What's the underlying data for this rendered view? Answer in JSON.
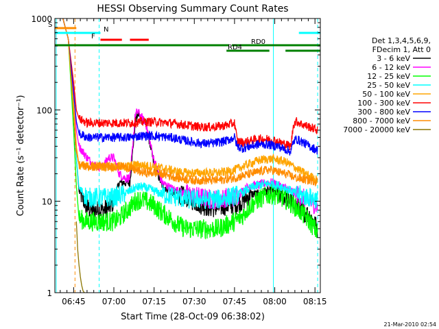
{
  "chart_data": {
    "type": "line",
    "title": "HESSI Observing Summary Count Rates",
    "xlabel": "Start Time (28-Oct-09 06:38:02)",
    "ylabel": "Count Rate (s⁻¹ detector⁻¹)",
    "ylog": true,
    "ylim": [
      1,
      1000
    ],
    "xlim_minutes": [
      38,
      137
    ],
    "xticks": [
      {
        "m": 45,
        "label": "06:45"
      },
      {
        "m": 60,
        "label": "07:00"
      },
      {
        "m": 75,
        "label": "07:15"
      },
      {
        "m": 90,
        "label": "07:30"
      },
      {
        "m": 105,
        "label": "07:45"
      },
      {
        "m": 120,
        "label": "08:00"
      },
      {
        "m": 135,
        "label": "08:15"
      }
    ],
    "yticks": [
      {
        "v": 1,
        "label": "1"
      },
      {
        "v": 10,
        "label": "10"
      },
      {
        "v": 100,
        "label": "100"
      },
      {
        "v": 1000,
        "label": "1000"
      }
    ],
    "legend_title": [
      "Det 1,3,4,5,6,9,",
      "FDecim 1, Att 0"
    ],
    "legend_position": "right",
    "series": [
      {
        "name": "3 - 6 keV",
        "color": "#000000",
        "x": [
          41,
          43,
          45,
          46,
          47,
          50,
          52,
          54,
          56,
          58,
          60,
          62,
          64,
          66,
          67,
          68,
          69,
          72,
          75,
          78,
          81,
          84,
          87,
          90,
          93,
          96,
          99,
          102,
          105,
          108,
          111,
          114,
          117,
          119,
          121,
          124,
          126,
          128,
          130,
          133,
          136
        ],
        "y": [
          1000,
          600,
          90,
          30,
          13,
          8.5,
          8,
          8,
          8,
          8.5,
          10,
          16,
          16,
          16,
          35,
          75,
          90,
          70,
          25,
          15,
          13,
          12,
          11,
          10,
          9,
          8.5,
          8.5,
          9,
          9,
          10,
          12,
          12,
          13,
          13,
          12,
          11,
          10,
          9,
          8,
          7,
          5
        ]
      },
      {
        "name": "6 - 12 keV",
        "color": "#ff00ff",
        "x": [
          41,
          43,
          45,
          46,
          47,
          50,
          52,
          54,
          56,
          58,
          60,
          62,
          64,
          66,
          67,
          68,
          69,
          72,
          75,
          78,
          81,
          84,
          87,
          90,
          93,
          96,
          99,
          102,
          105,
          108,
          111,
          114,
          117,
          119,
          121,
          124,
          126,
          128,
          130,
          133,
          136
        ],
        "y": [
          1000,
          600,
          180,
          60,
          40,
          30,
          26,
          24,
          24,
          30,
          30,
          20,
          18,
          18,
          40,
          90,
          95,
          70,
          28,
          16,
          14,
          13,
          12,
          11.5,
          11,
          10.5,
          10.5,
          11,
          11,
          13,
          15,
          15,
          16,
          16,
          15,
          14,
          13,
          12,
          11,
          10,
          9
        ]
      },
      {
        "name": "12 - 25 keV",
        "color": "#00ff00",
        "x": [
          41,
          43,
          45,
          46,
          47,
          50,
          52,
          54,
          56,
          58,
          60,
          62,
          64,
          66,
          68,
          70,
          72,
          75,
          78,
          81,
          84,
          87,
          90,
          93,
          96,
          99,
          102,
          105,
          108,
          111,
          114,
          117,
          119,
          121,
          124,
          126,
          128,
          130,
          133,
          136
        ],
        "y": [
          1000,
          600,
          60,
          15,
          6.5,
          6,
          6,
          6,
          6,
          6,
          6,
          6.5,
          7.5,
          8.5,
          10,
          10.5,
          10,
          9,
          7.5,
          6.5,
          5.5,
          5,
          5,
          5,
          5,
          5,
          5.5,
          6,
          7,
          9,
          10.5,
          11.5,
          12,
          11.5,
          10.5,
          9.5,
          8.5,
          7.5,
          6,
          4.5
        ]
      },
      {
        "name": "25 - 50 keV",
        "color": "#00ffff",
        "x": [
          41,
          43,
          45,
          46,
          47,
          50,
          52,
          54,
          56,
          58,
          60,
          62,
          64,
          66,
          68,
          70,
          72,
          75,
          78,
          81,
          84,
          87,
          90,
          93,
          96,
          99,
          102,
          105,
          108,
          111,
          114,
          117,
          119,
          121,
          124,
          126,
          128,
          130,
          133,
          136
        ],
        "y": [
          1000,
          600,
          120,
          30,
          14,
          11,
          11,
          11,
          11,
          11,
          11,
          11.5,
          12,
          13,
          14,
          14.5,
          14,
          13,
          12,
          11.5,
          11,
          10.5,
          10.5,
          10.5,
          10.5,
          10.5,
          11,
          11.5,
          12.5,
          14,
          15,
          15.5,
          15.5,
          15,
          14,
          13,
          12,
          11.5,
          11,
          10.5
        ]
      },
      {
        "name": "50 - 100 keV",
        "color": "#ffa500",
        "x": [
          41,
          43,
          45,
          46,
          47,
          50,
          52,
          54,
          56,
          58,
          60,
          62,
          64,
          66,
          68,
          70,
          72,
          75,
          78,
          81,
          84,
          87,
          90,
          93,
          96,
          99,
          102,
          105,
          108,
          111,
          114,
          117,
          119,
          121,
          124,
          126,
          128,
          130,
          133,
          136
        ],
        "y": [
          1000,
          600,
          130,
          40,
          25,
          24,
          24,
          24,
          24,
          24,
          24,
          24,
          24,
          24.5,
          25,
          25,
          24.5,
          24,
          23,
          22,
          21,
          20.5,
          20.5,
          20.5,
          20.5,
          20.5,
          21,
          22,
          24,
          26,
          28,
          29,
          29,
          28.5,
          27,
          25,
          23,
          21,
          19,
          17
        ]
      },
      {
        "name": "100 - 300 keV",
        "color": "#ff0000",
        "x": [
          41,
          43,
          45,
          46,
          47,
          50,
          52,
          54,
          56,
          58,
          60,
          62,
          64,
          66,
          68,
          70,
          72,
          75,
          78,
          81,
          84,
          87,
          90,
          93,
          96,
          99,
          102,
          105,
          106,
          108,
          111,
          114,
          117,
          119,
          121,
          124,
          126,
          127,
          128,
          130,
          133,
          136
        ],
        "y": [
          1000,
          600,
          200,
          100,
          80,
          72,
          72,
          72,
          72,
          72,
          72,
          72,
          72,
          72,
          73,
          74,
          74,
          74,
          73,
          72,
          70,
          68,
          66,
          65,
          65,
          66,
          68,
          72,
          46,
          44,
          46,
          48,
          48,
          47,
          45,
          42,
          40,
          70,
          75,
          70,
          65,
          60
        ]
      },
      {
        "name": "300 - 800 keV",
        "color": "#0000ff",
        "x": [
          41,
          43,
          45,
          46,
          47,
          50,
          52,
          54,
          56,
          58,
          60,
          62,
          64,
          66,
          68,
          70,
          72,
          75,
          78,
          81,
          84,
          87,
          90,
          93,
          96,
          99,
          102,
          105,
          106,
          108,
          111,
          114,
          117,
          119,
          121,
          124,
          126,
          127,
          128,
          130,
          133,
          136
        ],
        "y": [
          1000,
          600,
          150,
          75,
          55,
          50,
          50,
          50,
          50,
          50,
          50,
          50,
          50,
          50,
          51,
          52,
          52,
          52,
          51,
          50,
          48,
          46,
          44,
          43,
          43,
          44,
          46,
          50,
          40,
          38,
          40,
          42,
          42,
          41,
          40,
          37,
          35,
          45,
          48,
          45,
          40,
          36
        ]
      },
      {
        "name": "800 - 7000 keV",
        "color": "#ff8c00",
        "x": [
          41,
          43,
          45,
          46,
          47,
          50,
          52,
          54,
          56,
          58,
          60,
          62,
          64,
          66,
          68,
          70,
          72,
          75,
          78,
          81,
          84,
          87,
          90,
          93,
          96,
          99,
          102,
          105,
          108,
          111,
          114,
          117,
          119,
          121,
          124,
          126,
          128,
          130,
          133,
          136
        ],
        "y": [
          1000,
          600,
          90,
          35,
          25,
          24,
          24,
          24,
          24,
          24,
          24,
          24,
          24,
          23,
          22,
          21,
          20.5,
          20.5,
          20,
          19,
          18,
          17.5,
          17,
          17,
          17,
          17,
          17.5,
          18,
          19,
          20,
          21,
          22,
          22,
          21,
          20,
          19,
          18,
          17.5,
          17,
          16.5
        ]
      },
      {
        "name": "7000 - 20000 keV",
        "color": "#8b7500",
        "x": [
          46,
          46.5,
          47,
          47.5,
          48,
          48.5,
          49
        ],
        "y": [
          6,
          3,
          2,
          1.5,
          1.2,
          1.05,
          1
        ]
      }
    ],
    "flags": [
      {
        "label": "S",
        "color": "#ff8c00",
        "segments": [
          [
            38,
            46
          ]
        ]
      },
      {
        "label": "N",
        "color": "#00ffff",
        "segments": [
          [
            38,
            55
          ],
          [
            129,
            137
          ]
        ]
      },
      {
        "label": "F",
        "color": "#ff0000",
        "segments": [
          [
            55,
            63
          ],
          [
            66,
            73
          ]
        ]
      },
      {
        "label": "RD0",
        "color": "#008000",
        "segments": [
          [
            38,
            103
          ],
          [
            104,
            137
          ]
        ]
      },
      {
        "label": "RD4",
        "color": "#008000",
        "segments": [
          [
            102,
            118
          ],
          [
            124,
            137
          ]
        ]
      }
    ],
    "vlines": [
      {
        "m": 38.5,
        "color": "#00ffff",
        "dashed": false
      },
      {
        "m": 45.5,
        "color": "#ff8c00",
        "dashed": true
      },
      {
        "m": 54.5,
        "color": "#00ffff",
        "dashed": true
      },
      {
        "m": 119.5,
        "color": "#00ffff",
        "dashed": false
      },
      {
        "m": 136,
        "color": "#00ffff",
        "dashed": true
      }
    ]
  },
  "footer": {
    "timestamp": "21-Mar-2010 02:54"
  }
}
